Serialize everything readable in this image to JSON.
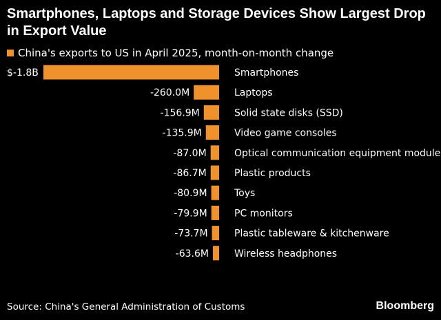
{
  "title": "Smartphones, Laptops and Storage Devices Show Largest Drop in Export Value",
  "legend_label": "China's exports to US in April 2025, month-on-month change",
  "bar_color": "#f0922c",
  "source": "Source: China's General Administration of Customs",
  "brand": "Bloomberg",
  "chart_data": {
    "type": "bar",
    "orientation": "horizontal",
    "title": "Smartphones, Laptops and Storage Devices Show Largest Drop in Export Value",
    "series": [
      {
        "name": "China's exports to US in April 2025, month-on-month change",
        "unit": "USD millions",
        "values": [
          -1800,
          -260.0,
          -156.9,
          -135.9,
          -87.0,
          -86.7,
          -80.9,
          -79.9,
          -73.7,
          -63.6
        ]
      }
    ],
    "categories": [
      "Smartphones",
      "Laptops",
      "Solid state disks (SSD)",
      "Video game consoles",
      "Optical communication equipment modules",
      "Plastic products",
      "Toys",
      "PC monitors",
      "Plastic tableware & kitchenware",
      "Wireless headphones"
    ],
    "data_labels": [
      "$-1.8B",
      "-260.0M",
      "-156.9M",
      "-135.9M",
      "-87.0M",
      "-86.7M",
      "-80.9M",
      "-79.9M",
      "-73.7M",
      "-63.6M"
    ],
    "xlabel": "",
    "ylabel": "",
    "xlim": [
      -1800,
      0
    ]
  }
}
